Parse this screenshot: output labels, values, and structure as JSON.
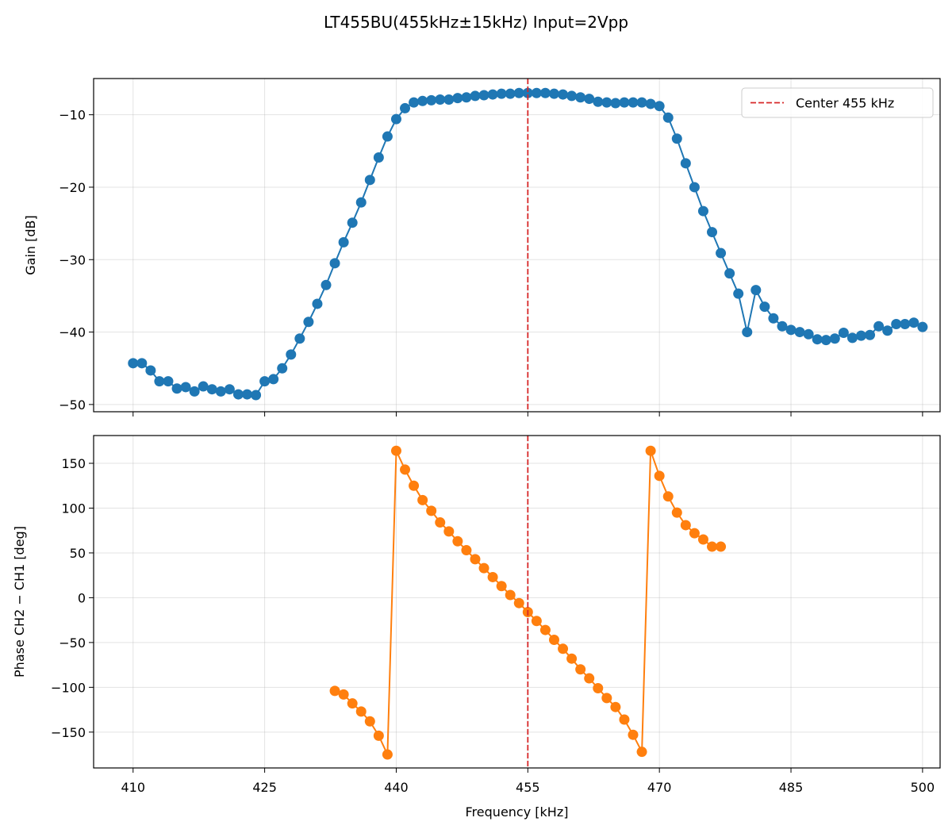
{
  "figure": {
    "title": "LT455BU(455kHz±15kHz) Input=2Vpp"
  },
  "chart_data": [
    {
      "type": "line",
      "markers": true,
      "ylabel": "Gain [dB]",
      "xlabel": "",
      "xlim": [
        405.5,
        502
      ],
      "ylim": [
        -51,
        -5
      ],
      "xticks": [
        410,
        425,
        440,
        455,
        470,
        485,
        500
      ],
      "yticks": [
        -50,
        -40,
        -30,
        -20,
        -10
      ],
      "ytick_labels": [
        "−50",
        "−40",
        "−30",
        "−20",
        "−10"
      ],
      "grid": true,
      "color": "#1f77b4",
      "legend": {
        "position": "top-right",
        "entries": [
          {
            "label": "Center 455 kHz",
            "color": "#d62728",
            "style": "dashed"
          }
        ]
      },
      "vline": {
        "x": 455,
        "color": "#d62728"
      },
      "series": [
        {
          "x": [
            410,
            411,
            412,
            413,
            414,
            415,
            416,
            417,
            418,
            419,
            420,
            421,
            422,
            423,
            424,
            425,
            426,
            427,
            428,
            429,
            430,
            431,
            432,
            433,
            434,
            435,
            436,
            437,
            438,
            439,
            440,
            441,
            442,
            443,
            444,
            445,
            446,
            447,
            448,
            449,
            450,
            451,
            452,
            453,
            454,
            455,
            456,
            457,
            458,
            459,
            460,
            461,
            462,
            463,
            464,
            465,
            466,
            467,
            468,
            469,
            470,
            471,
            472,
            473,
            474,
            475,
            476,
            477,
            478,
            479,
            480,
            481,
            482,
            483,
            484,
            485,
            486,
            487,
            488,
            489,
            490,
            491,
            492,
            493,
            494,
            495,
            496,
            497,
            498,
            499,
            500
          ],
          "values": [
            -44.3,
            -44.3,
            -45.3,
            -46.8,
            -46.8,
            -47.8,
            -47.6,
            -48.2,
            -47.5,
            -47.9,
            -48.2,
            -47.9,
            -48.6,
            -48.6,
            -48.7,
            -46.8,
            -46.5,
            -45.0,
            -43.1,
            -40.9,
            -38.6,
            -36.1,
            -33.5,
            -30.5,
            -27.6,
            -24.9,
            -22.1,
            -19.0,
            -15.9,
            -13.0,
            -10.6,
            -9.1,
            -8.3,
            -8.1,
            -8.0,
            -7.9,
            -7.9,
            -7.7,
            -7.6,
            -7.4,
            -7.3,
            -7.2,
            -7.1,
            -7.1,
            -7.0,
            -7.0,
            -7.0,
            -7.0,
            -7.1,
            -7.2,
            -7.4,
            -7.6,
            -7.8,
            -8.2,
            -8.3,
            -8.4,
            -8.3,
            -8.3,
            -8.3,
            -8.5,
            -8.8,
            -10.4,
            -13.3,
            -16.7,
            -20.0,
            -23.3,
            -26.2,
            -29.1,
            -31.9,
            -34.7,
            -40.0,
            -34.2,
            -36.5,
            -38.1,
            -39.2,
            -39.7,
            -40.0,
            -40.3,
            -41.0,
            -41.1,
            -40.9,
            -40.1,
            -40.8,
            -40.5,
            -40.4,
            -39.2,
            -39.8,
            -38.9,
            -38.9,
            -38.7,
            -39.3
          ]
        }
      ]
    },
    {
      "type": "line",
      "markers": true,
      "ylabel": "Phase CH2 − CH1 [deg]",
      "xlabel": "Frequency [kHz]",
      "xlim": [
        405.5,
        502
      ],
      "ylim": [
        -190,
        181
      ],
      "xticks": [
        410,
        425,
        440,
        455,
        470,
        485,
        500
      ],
      "xtick_labels": [
        "410",
        "425",
        "440",
        "455",
        "470",
        "485",
        "500"
      ],
      "yticks": [
        -150,
        -100,
        -50,
        0,
        50,
        100,
        150
      ],
      "ytick_labels": [
        "−150",
        "−100",
        "−50",
        "0",
        "50",
        "100",
        "150"
      ],
      "grid": true,
      "color": "#ff7f0e",
      "vline": {
        "x": 455,
        "color": "#d62728"
      },
      "series": [
        {
          "x": [
            433,
            434,
            435,
            436,
            437,
            438,
            439,
            440,
            441,
            442,
            443,
            444,
            445,
            446,
            447,
            448,
            449,
            450,
            451,
            452,
            453,
            454,
            455,
            456,
            457,
            458,
            459,
            460,
            461,
            462,
            463,
            464,
            465,
            466,
            467,
            468,
            469,
            470,
            471,
            472,
            473,
            474,
            475,
            476,
            477
          ],
          "values": [
            -104,
            -108,
            -118,
            -127,
            -138,
            -154,
            -175,
            164,
            143,
            125,
            109,
            97,
            84,
            74,
            63,
            53,
            43,
            33,
            23,
            13,
            3,
            -6,
            -16,
            -26,
            -36,
            -47,
            -57,
            -68,
            -80,
            -90,
            -101,
            -112,
            -122,
            -136,
            -153,
            -172,
            164,
            136,
            113,
            95,
            81,
            72,
            65,
            57,
            57
          ]
        }
      ]
    }
  ]
}
